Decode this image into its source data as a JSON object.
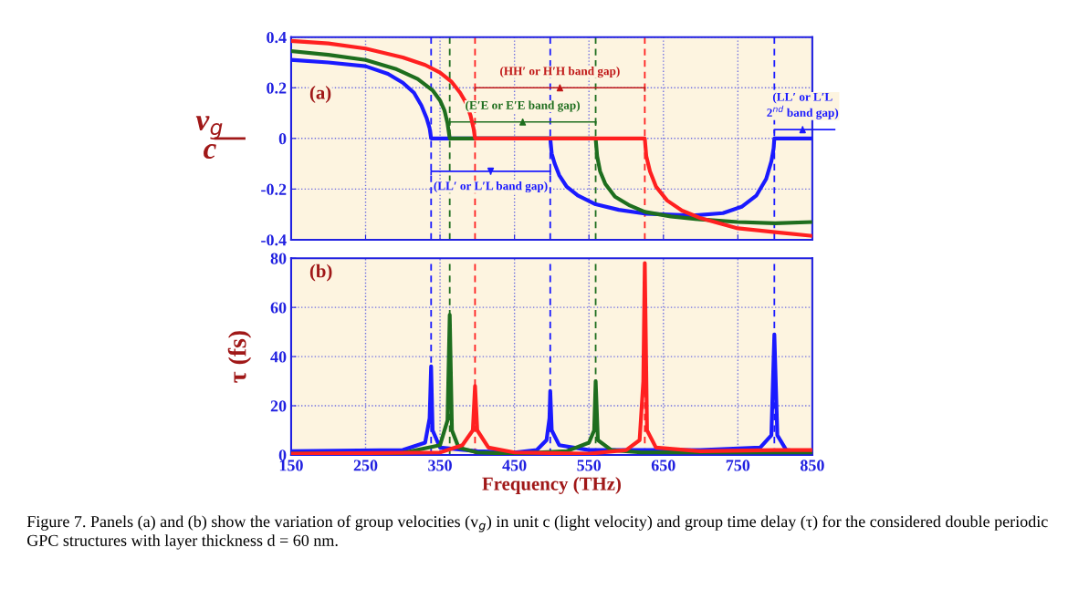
{
  "chart_data": [
    {
      "type": "line",
      "xlim": [
        150,
        850
      ],
      "xticks": [
        150,
        250,
        350,
        450,
        550,
        650,
        750,
        850
      ],
      "ylim": [
        -0.4,
        0.4
      ],
      "yticks": [
        -0.4,
        -0.2,
        0,
        0.2,
        0.4
      ],
      "ylabel": "v$_{g}$\nc",
      "tick_labels": "y",
      "grid": true,
      "series": [
        {
          "color": "#1a1aff",
          "x": [
            150,
            200,
            250,
            280,
            300,
            315,
            325,
            332,
            336,
            338,
            498,
            500,
            504,
            510,
            520,
            535,
            559,
            590,
            625,
            690,
            730,
            755,
            775,
            788,
            795,
            798,
            799,
            850
          ],
          "values": [
            0.31,
            0.3,
            0.285,
            0.255,
            0.22,
            0.18,
            0.13,
            0.08,
            0.04,
            0,
            0,
            -0.06,
            -0.1,
            -0.145,
            -0.19,
            -0.225,
            -0.26,
            -0.282,
            -0.297,
            -0.304,
            -0.295,
            -0.27,
            -0.225,
            -0.16,
            -0.09,
            -0.04,
            0,
            0
          ]
        },
        {
          "color": "#1e6e1e",
          "x": [
            150,
            200,
            250,
            290,
            320,
            340,
            350,
            356,
            360,
            363,
            559,
            561,
            565,
            572,
            585,
            605,
            625,
            660,
            700,
            750,
            800,
            850
          ],
          "values": [
            0.345,
            0.33,
            0.31,
            0.275,
            0.235,
            0.19,
            0.15,
            0.11,
            0.06,
            0,
            0,
            -0.07,
            -0.13,
            -0.18,
            -0.23,
            -0.265,
            -0.29,
            -0.308,
            -0.32,
            -0.33,
            -0.335,
            -0.33
          ]
        },
        {
          "color": "#ff2020",
          "x": [
            150,
            200,
            250,
            300,
            330,
            350,
            365,
            377,
            385,
            391,
            395,
            397,
            625,
            627,
            632,
            640,
            655,
            675,
            700,
            750,
            800,
            850
          ],
          "values": [
            0.385,
            0.375,
            0.355,
            0.32,
            0.29,
            0.26,
            0.225,
            0.18,
            0.14,
            0.09,
            0.04,
            0,
            0,
            -0.07,
            -0.13,
            -0.19,
            -0.245,
            -0.285,
            -0.315,
            -0.355,
            -0.37,
            -0.385
          ]
        }
      ],
      "ref_lines": [
        {
          "axis": "x",
          "value": 338,
          "color": "#1a1aff",
          "line_style": "dashed"
        },
        {
          "axis": "x",
          "value": 363,
          "color": "#1e6e1e",
          "line_style": "dashed"
        },
        {
          "axis": "x",
          "value": 397,
          "color": "#ff2020",
          "line_style": "dashed"
        },
        {
          "axis": "x",
          "value": 498,
          "color": "#1a1aff",
          "line_style": "dashed"
        },
        {
          "axis": "x",
          "value": 559,
          "color": "#1e6e1e",
          "line_style": "dashed"
        },
        {
          "axis": "x",
          "value": 625,
          "color": "#ff2020",
          "line_style": "dashed"
        },
        {
          "axis": "x",
          "value": 799,
          "color": "#1a1aff",
          "line_style": "dashed"
        }
      ],
      "annotations": [
        "(a)",
        {
          "text": "(HH′ or H′H band gap)",
          "x": 511,
          "y": 0.2
        },
        {
          "text": "(E′E or E′E band gap)",
          "x": 461,
          "y": 0.065
        },
        {
          "text": "(LL′ or L′L band gap)",
          "x": 418,
          "y": -0.13
        },
        {
          "text": "(LL′ or L′L\n2$^{nd}$ band gap)",
          "x": 837,
          "y": 0.035
        }
      ]
    },
    {
      "type": "line",
      "xlim": [
        150,
        850
      ],
      "xticks": [
        150,
        250,
        350,
        450,
        550,
        650,
        750,
        850
      ],
      "ylim": [
        0,
        80
      ],
      "yticks": [
        0,
        20,
        40,
        60,
        80
      ],
      "xlabel": "Frequency (THz)",
      "ylabel": "τ (fs)",
      "grid": true,
      "series": [
        {
          "color": "#1a1aff",
          "x": [
            150,
            300,
            330,
            336,
            338,
            340,
            350,
            400,
            450,
            480,
            493,
            497,
            498,
            500,
            510,
            550,
            600,
            700,
            780,
            795,
            799,
            803,
            815,
            850
          ],
          "values": [
            1.5,
            2,
            5,
            15,
            36,
            10,
            3,
            1.5,
            1,
            2,
            6,
            15,
            26,
            10,
            4,
            2,
            2,
            2,
            3,
            8,
            49,
            8,
            2,
            1
          ]
        },
        {
          "color": "#1e6e1e",
          "x": [
            150,
            300,
            350,
            360,
            363,
            366,
            375,
            400,
            450,
            520,
            550,
            557,
            559,
            562,
            580,
            620,
            700,
            850
          ],
          "values": [
            0.5,
            0.8,
            4,
            14,
            57,
            10,
            3,
            1,
            0.5,
            1.5,
            5,
            10,
            30,
            6,
            2,
            1,
            1,
            1
          ]
        },
        {
          "color": "#ff2020",
          "x": [
            150,
            350,
            380,
            394,
            397,
            400,
            415,
            450,
            550,
            600,
            618,
            623,
            625,
            628,
            640,
            700,
            800,
            850
          ],
          "values": [
            0.5,
            1,
            4,
            10,
            28,
            10,
            3,
            1,
            0.5,
            2,
            6,
            30,
            78,
            10,
            3,
            1.5,
            2,
            2
          ]
        }
      ],
      "ref_lines": [
        {
          "axis": "x",
          "value": 338,
          "color": "#1a1aff",
          "line_style": "dashed"
        },
        {
          "axis": "x",
          "value": 363,
          "color": "#1e6e1e",
          "line_style": "dashed"
        },
        {
          "axis": "x",
          "value": 397,
          "color": "#ff2020",
          "line_style": "dashed"
        },
        {
          "axis": "x",
          "value": 498,
          "color": "#1a1aff",
          "line_style": "dashed"
        },
        {
          "axis": "x",
          "value": 559,
          "color": "#1e6e1e",
          "line_style": "dashed"
        },
        {
          "axis": "x",
          "value": 625,
          "color": "#ff2020",
          "line_style": "dashed"
        },
        {
          "axis": "x",
          "value": 799,
          "color": "#1a1aff",
          "line_style": "dashed"
        }
      ],
      "annotations": [
        "(b)",
        "Figure 7. Panels (a) and (b) show the variation of group velocities (v$_{g}$) in unit c (light velocity) and group time delay (τ) for the considered double periodic GPC structures with layer thickness d = 60 nm."
      ]
    }
  ]
}
